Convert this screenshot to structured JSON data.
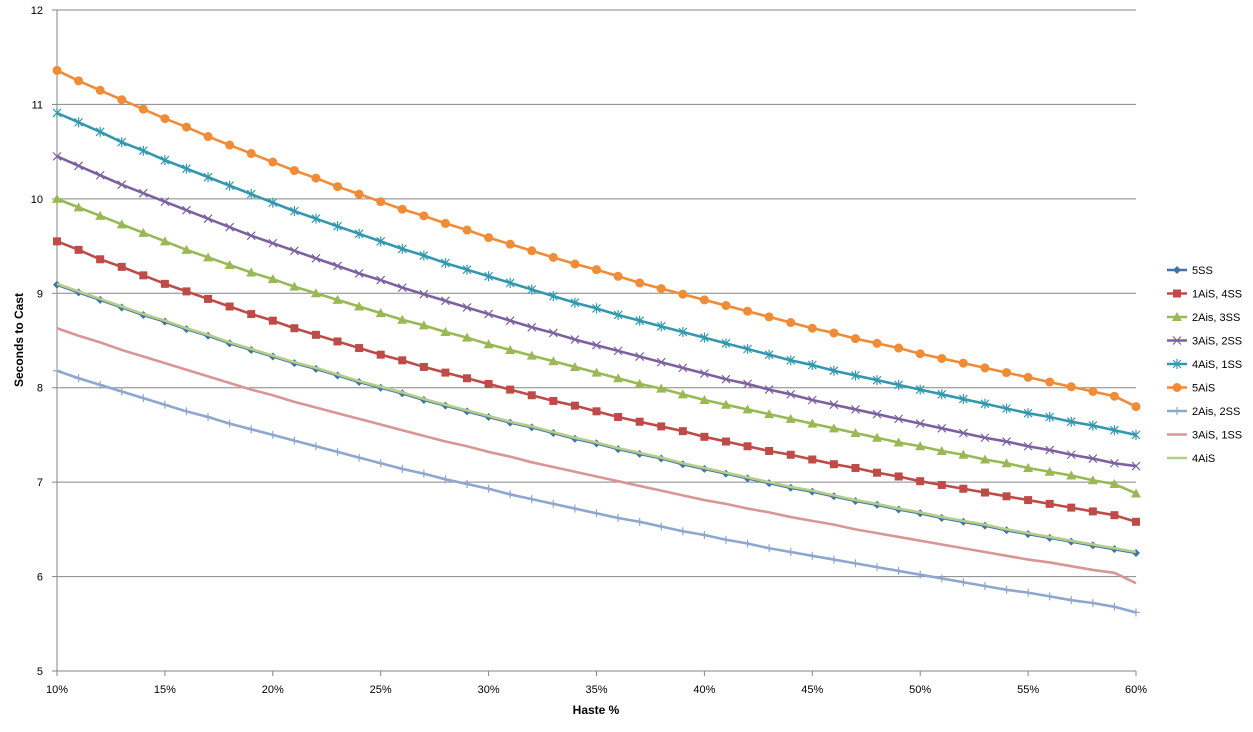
{
  "chart_data": {
    "type": "line",
    "title": "",
    "xlabel": "Haste %",
    "ylabel": "Seconds to Cast",
    "xlim": [
      10,
      60
    ],
    "ylim": [
      5,
      12
    ],
    "x_ticks": [
      10,
      15,
      20,
      25,
      30,
      35,
      40,
      45,
      50,
      55,
      60
    ],
    "x_tick_labels": [
      "10%",
      "15%",
      "20%",
      "25%",
      "30%",
      "35%",
      "40%",
      "45%",
      "50%",
      "55%",
      "60%"
    ],
    "y_ticks": [
      5,
      6,
      7,
      8,
      9,
      10,
      11,
      12
    ],
    "y_tick_labels": [
      "5",
      "6",
      "7",
      "8",
      "9",
      "10",
      "11",
      "12"
    ],
    "grid": "horizontal",
    "legend_position": "right",
    "x": [
      10,
      11,
      12,
      13,
      14,
      15,
      16,
      17,
      18,
      19,
      20,
      21,
      22,
      23,
      24,
      25,
      26,
      27,
      28,
      29,
      30,
      31,
      32,
      33,
      34,
      35,
      36,
      37,
      38,
      39,
      40,
      41,
      42,
      43,
      44,
      45,
      46,
      47,
      48,
      49,
      50,
      51,
      52,
      53,
      54,
      55,
      56,
      57,
      58,
      59,
      60
    ],
    "series": [
      {
        "name": "5SS",
        "color": "#4472A8",
        "marker": "diamond",
        "values": [
          9.09,
          9.01,
          8.93,
          8.85,
          8.77,
          8.7,
          8.62,
          8.55,
          8.47,
          8.4,
          8.33,
          8.26,
          8.2,
          8.13,
          8.06,
          8.0,
          7.94,
          7.87,
          7.81,
          7.75,
          7.69,
          7.63,
          7.58,
          7.52,
          7.46,
          7.41,
          7.35,
          7.3,
          7.25,
          7.19,
          7.14,
          7.09,
          7.04,
          6.99,
          6.94,
          6.9,
          6.85,
          6.8,
          6.76,
          6.71,
          6.67,
          6.62,
          6.58,
          6.54,
          6.49,
          6.45,
          6.41,
          6.37,
          6.33,
          6.29,
          6.25
        ]
      },
      {
        "name": "1AiS, 4SS",
        "color": "#BE4B48",
        "marker": "square",
        "values": [
          9.55,
          9.46,
          9.36,
          9.28,
          9.19,
          9.1,
          9.02,
          8.94,
          8.86,
          8.78,
          8.71,
          8.63,
          8.56,
          8.49,
          8.42,
          8.35,
          8.29,
          8.22,
          8.16,
          8.1,
          8.04,
          7.98,
          7.92,
          7.86,
          7.81,
          7.75,
          7.69,
          7.64,
          7.59,
          7.54,
          7.48,
          7.43,
          7.38,
          7.33,
          7.29,
          7.24,
          7.19,
          7.15,
          7.1,
          7.06,
          7.01,
          6.97,
          6.93,
          6.89,
          6.85,
          6.81,
          6.77,
          6.73,
          6.69,
          6.65,
          6.58
        ]
      },
      {
        "name": "2Ais, 3SS",
        "color": "#98B954",
        "marker": "triangle",
        "values": [
          10.0,
          9.91,
          9.82,
          9.73,
          9.64,
          9.55,
          9.46,
          9.38,
          9.3,
          9.22,
          9.15,
          9.07,
          9.0,
          8.93,
          8.86,
          8.79,
          8.72,
          8.66,
          8.59,
          8.53,
          8.46,
          8.4,
          8.34,
          8.28,
          8.22,
          8.16,
          8.1,
          8.04,
          7.99,
          7.93,
          7.87,
          7.82,
          7.77,
          7.72,
          7.67,
          7.62,
          7.57,
          7.52,
          7.47,
          7.42,
          7.38,
          7.33,
          7.29,
          7.24,
          7.2,
          7.15,
          7.11,
          7.07,
          7.02,
          6.98,
          6.88
        ]
      },
      {
        "name": "3AiS, 2SS",
        "color": "#7D60A0",
        "marker": "x",
        "values": [
          10.45,
          10.35,
          10.25,
          10.15,
          10.06,
          9.97,
          9.88,
          9.79,
          9.7,
          9.61,
          9.53,
          9.45,
          9.37,
          9.29,
          9.21,
          9.14,
          9.06,
          8.99,
          8.92,
          8.85,
          8.78,
          8.71,
          8.64,
          8.58,
          8.51,
          8.45,
          8.39,
          8.33,
          8.27,
          8.21,
          8.15,
          8.09,
          8.04,
          7.98,
          7.93,
          7.87,
          7.82,
          7.77,
          7.72,
          7.67,
          7.62,
          7.57,
          7.52,
          7.47,
          7.43,
          7.38,
          7.34,
          7.29,
          7.25,
          7.2,
          7.17
        ]
      },
      {
        "name": "4AiS, 1SS",
        "color": "#3398AF",
        "marker": "star",
        "values": [
          10.91,
          10.81,
          10.71,
          10.6,
          10.51,
          10.41,
          10.32,
          10.23,
          10.14,
          10.05,
          9.96,
          9.87,
          9.79,
          9.71,
          9.63,
          9.55,
          9.47,
          9.4,
          9.32,
          9.25,
          9.18,
          9.11,
          9.04,
          8.97,
          8.9,
          8.84,
          8.77,
          8.71,
          8.65,
          8.59,
          8.53,
          8.47,
          8.41,
          8.35,
          8.29,
          8.24,
          8.18,
          8.13,
          8.08,
          8.03,
          7.98,
          7.93,
          7.88,
          7.83,
          7.78,
          7.73,
          7.69,
          7.64,
          7.6,
          7.55,
          7.5
        ]
      },
      {
        "name": "5AiS",
        "color": "#F08B36",
        "marker": "circle",
        "values": [
          11.36,
          11.25,
          11.15,
          11.05,
          10.95,
          10.85,
          10.76,
          10.66,
          10.57,
          10.48,
          10.39,
          10.3,
          10.22,
          10.13,
          10.05,
          9.97,
          9.89,
          9.82,
          9.74,
          9.67,
          9.59,
          9.52,
          9.45,
          9.38,
          9.31,
          9.25,
          9.18,
          9.11,
          9.05,
          8.99,
          8.93,
          8.87,
          8.81,
          8.75,
          8.69,
          8.63,
          8.58,
          8.52,
          8.47,
          8.42,
          8.36,
          8.31,
          8.26,
          8.21,
          8.16,
          8.11,
          8.06,
          8.01,
          7.96,
          7.91,
          7.8
        ]
      },
      {
        "name": "2Ais, 2SS",
        "color": "#8FA7CF",
        "marker": "plus",
        "values": [
          8.18,
          8.1,
          8.03,
          7.96,
          7.89,
          7.82,
          7.75,
          7.69,
          7.62,
          7.56,
          7.5,
          7.44,
          7.38,
          7.32,
          7.26,
          7.2,
          7.14,
          7.09,
          7.03,
          6.98,
          6.93,
          6.87,
          6.82,
          6.77,
          6.72,
          6.67,
          6.62,
          6.58,
          6.53,
          6.48,
          6.44,
          6.39,
          6.35,
          6.3,
          6.26,
          6.22,
          6.18,
          6.14,
          6.1,
          6.06,
          6.02,
          5.98,
          5.94,
          5.9,
          5.86,
          5.83,
          5.79,
          5.75,
          5.72,
          5.68,
          5.62
        ]
      },
      {
        "name": "3AiS, 1SS",
        "color": "#D99694",
        "marker": "none",
        "values": [
          8.63,
          8.55,
          8.48,
          8.4,
          8.33,
          8.26,
          8.19,
          8.12,
          8.05,
          7.98,
          7.92,
          7.85,
          7.79,
          7.73,
          7.67,
          7.61,
          7.55,
          7.49,
          7.43,
          7.38,
          7.32,
          7.27,
          7.21,
          7.16,
          7.11,
          7.06,
          7.01,
          6.96,
          6.91,
          6.86,
          6.81,
          6.77,
          6.72,
          6.68,
          6.63,
          6.59,
          6.55,
          6.5,
          6.46,
          6.42,
          6.38,
          6.34,
          6.3,
          6.26,
          6.22,
          6.18,
          6.15,
          6.11,
          6.07,
          6.04,
          5.93
        ]
      },
      {
        "name": "4AiS",
        "color": "#B3CF87",
        "marker": "none",
        "values": [
          9.1,
          9.02,
          8.94,
          8.86,
          8.78,
          8.71,
          8.63,
          8.56,
          8.48,
          8.41,
          8.34,
          8.27,
          8.21,
          8.14,
          8.07,
          8.01,
          7.95,
          7.88,
          7.82,
          7.76,
          7.7,
          7.64,
          7.59,
          7.53,
          7.47,
          7.42,
          7.36,
          7.31,
          7.26,
          7.2,
          7.15,
          7.1,
          7.05,
          7.0,
          6.95,
          6.91,
          6.86,
          6.81,
          6.77,
          6.72,
          6.68,
          6.63,
          6.59,
          6.55,
          6.5,
          6.46,
          6.42,
          6.38,
          6.34,
          6.3,
          6.26
        ]
      }
    ]
  }
}
